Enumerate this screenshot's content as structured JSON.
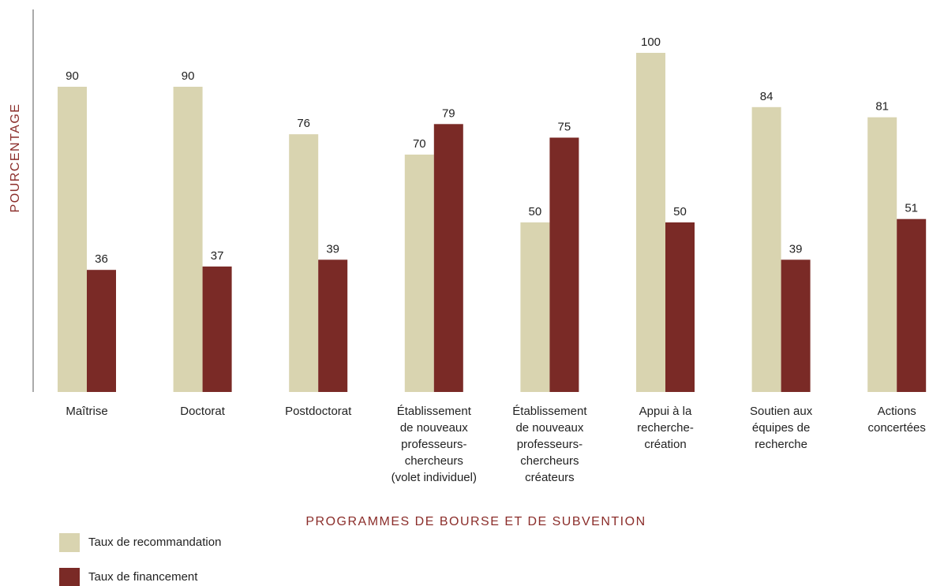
{
  "chart_data": {
    "type": "bar",
    "y_label": "POURCENTAGE",
    "x_label": "PROGRAMMES DE BOURSE ET DE SUBVENTION",
    "categories": [
      [
        "Maîtrise"
      ],
      [
        "Doctorat"
      ],
      [
        "Postdoctorat"
      ],
      [
        "Établissement",
        "de nouveaux",
        "professeurs-",
        "chercheurs",
        "(volet individuel)"
      ],
      [
        "Établissement",
        "de nouveaux",
        "professeurs-",
        "chercheurs",
        "créateurs"
      ],
      [
        "Appui à la",
        "recherche-",
        "création"
      ],
      [
        "Soutien aux",
        "équipes de",
        "recherche"
      ],
      [
        "Actions",
        "concertées"
      ]
    ],
    "series": [
      {
        "name": "Taux de recommandation",
        "color": "#d9d4b0",
        "values": [
          90,
          90,
          76,
          70,
          50,
          100,
          84,
          81
        ]
      },
      {
        "name": "Taux de financement",
        "color": "#7a2a26",
        "values": [
          36,
          37,
          39,
          79,
          75,
          50,
          39,
          51
        ]
      }
    ],
    "ylim": [
      0,
      100
    ]
  }
}
